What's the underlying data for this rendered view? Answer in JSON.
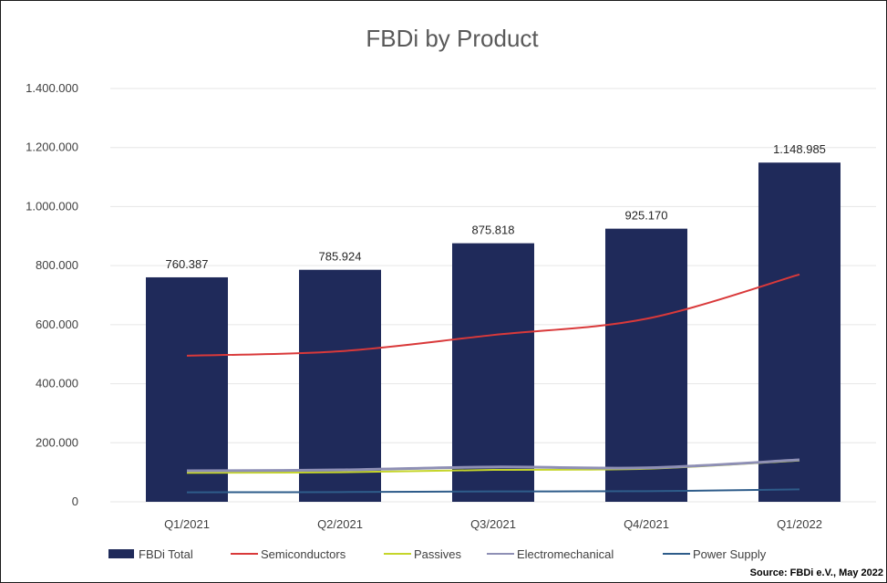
{
  "chart_data": {
    "type": "bar",
    "title": "FBDi by Product",
    "categories": [
      "Q1/2021",
      "Q2/2021",
      "Q3/2021",
      "Q4/2021",
      "Q1/2022"
    ],
    "y_ticks": [
      "0",
      "200.000",
      "400.000",
      "600.000",
      "800.000",
      "1.000.000",
      "1.200.000",
      "1.400.000"
    ],
    "ylim": [
      0,
      1400000
    ],
    "grid": true,
    "legend_position": "bottom",
    "series": [
      {
        "name": "FBDi Total",
        "type": "bar",
        "color": "#1f2a5a",
        "values": [
          760387,
          785924,
          875818,
          925170,
          1148985
        ],
        "data_labels": [
          "760.387",
          "785.924",
          "875.818",
          "925.170",
          "1.148.985"
        ]
      },
      {
        "name": "Semiconductors",
        "type": "line",
        "color": "#d9393a",
        "values": [
          495000,
          510000,
          565000,
          620000,
          770000
        ]
      },
      {
        "name": "Passives",
        "type": "line",
        "color": "#c5d52a",
        "values": [
          98000,
          100000,
          108000,
          112000,
          140000
        ]
      },
      {
        "name": "Electromechanical",
        "type": "line",
        "color": "#8e8fb5",
        "values": [
          105000,
          108000,
          118000,
          115000,
          142000
        ]
      },
      {
        "name": "Power Supply",
        "type": "line",
        "color": "#2e5c8a",
        "values": [
          32000,
          33000,
          35000,
          36000,
          42000
        ]
      }
    ],
    "source": "Source: FBDi e.V., May 2022"
  }
}
